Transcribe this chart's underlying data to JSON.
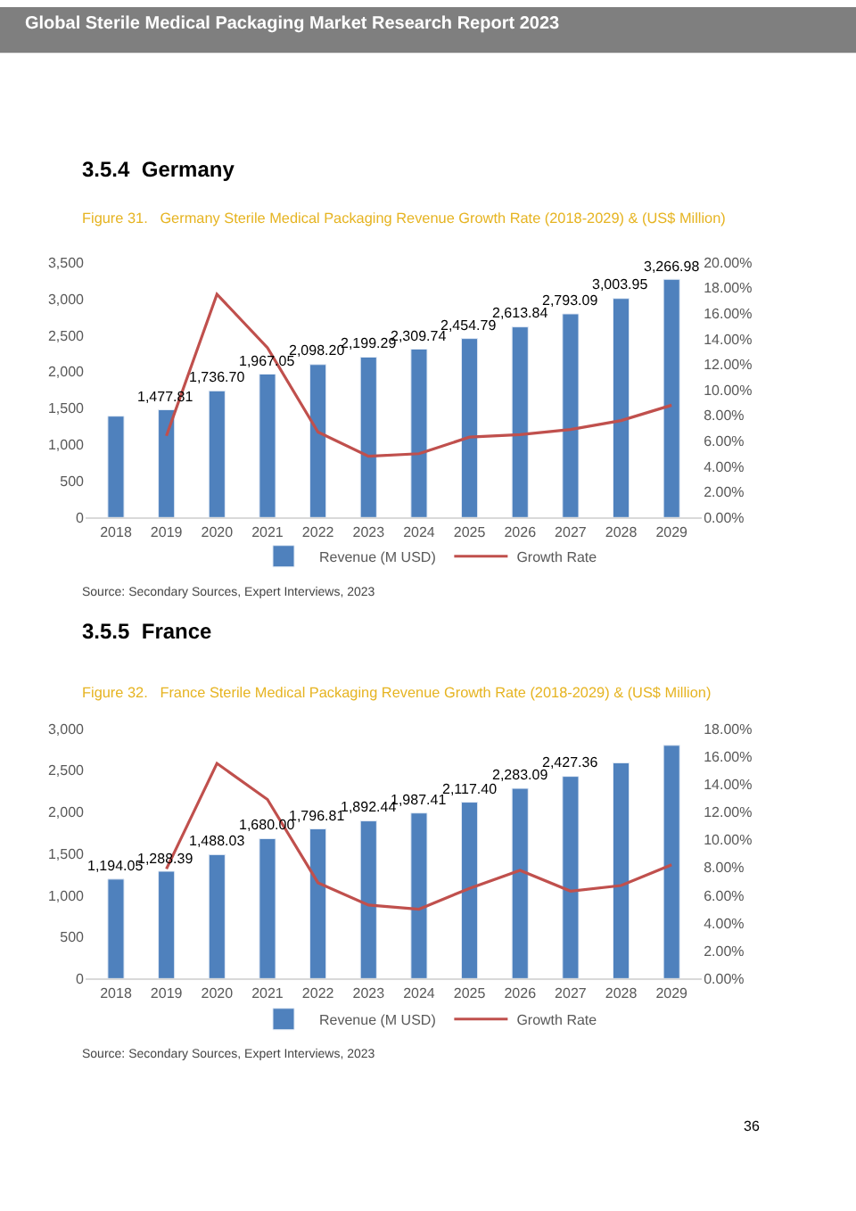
{
  "chart_data": [
    {
      "type": "bar",
      "title": "Figure 31.   Germany Sterile Medical Packaging Revenue Growth Rate (2018-2029) & (US$ Million)",
      "annotations": [
        "Global Sterile Medical Packaging Market Research Report 2023",
        "3.5.4  Germany",
        "Source: Secondary Sources, Expert Interviews, 2023"
      ],
      "categories": [
        "2018",
        "2019",
        "2020",
        "2021",
        "2022",
        "2023",
        "2024",
        "2025",
        "2026",
        "2027",
        "2028",
        "2029"
      ],
      "series": [
        {
          "name": "Revenue (M USD)",
          "color": "#4f81bd",
          "values": [
            1390,
            1477.81,
            1736.7,
            1967.05,
            2098.2,
            2199.29,
            2309.74,
            2454.79,
            2613.84,
            2793.09,
            3003.95,
            3266.98
          ],
          "value_labels": [
            null,
            "1,477.81",
            "1,736.70",
            "1,967.05",
            "2,098.20",
            "2,199.29",
            "2,309.74",
            "2,454.79",
            "2,613.84",
            "2,793.09",
            "3,003.95",
            "3,266.98"
          ]
        },
        {
          "name": "Growth Rate",
          "type": "line",
          "axis": "y2",
          "color": "#c0504d",
          "values": [
            null,
            6.4,
            17.5,
            13.3,
            6.7,
            4.8,
            5.0,
            6.3,
            6.5,
            6.9,
            7.6,
            8.8
          ]
        }
      ],
      "ylim": [
        0,
        3500
      ],
      "yticks": [
        0,
        {
          "value": 500,
          "label": "500"
        },
        {
          "value": 1000,
          "label": "1,000"
        },
        {
          "value": 1500,
          "label": "1,500"
        },
        {
          "value": 2000,
          "label": "2,000"
        },
        {
          "value": 2500,
          "label": "2,500"
        },
        {
          "value": 3000,
          "label": "3,000"
        },
        {
          "value": 3500,
          "label": "3,500"
        }
      ],
      "y2lim": [
        0,
        20
      ],
      "y2ticks": [
        {
          "value": 0,
          "label": "0.00%"
        },
        {
          "value": 2,
          "label": "2.00%"
        },
        {
          "value": 4,
          "label": "4.00%"
        },
        {
          "value": 6,
          "label": "6.00%"
        },
        {
          "value": 8,
          "label": "8.00%"
        },
        {
          "value": 10,
          "label": "10.00%"
        },
        {
          "value": 12,
          "label": "12.00%"
        },
        {
          "value": 14,
          "label": "14.00%"
        },
        {
          "value": 16,
          "label": "16.00%"
        },
        {
          "value": 18,
          "label": "18.00%"
        },
        {
          "value": 20,
          "label": "20.00%"
        }
      ],
      "grid": false,
      "legend": "bottom",
      "marker": "none",
      "line_style": "solid"
    },
    {
      "type": "bar",
      "title": "Figure 32.   France Sterile Medical Packaging Revenue Growth Rate (2018-2029) & (US$ Million)",
      "annotations": [
        "3.5.5  France",
        "Source: Secondary Sources, Expert Interviews, 2023",
        "36"
      ],
      "categories": [
        "2018",
        "2019",
        "2020",
        "2021",
        "2022",
        "2023",
        "2024",
        "2025",
        "2026",
        "2027",
        "2028",
        "2029"
      ],
      "series": [
        {
          "name": "Revenue (M USD)",
          "color": "#4f81bd",
          "values": [
            1194.05,
            1288.39,
            1488.03,
            1680.0,
            1796.81,
            1892.44,
            1987.41,
            2117.4,
            2283.09,
            2427.36,
            2590,
            2800
          ],
          "value_labels": [
            "1,194.05",
            "1,288.39",
            "1,488.03",
            "1,680.00",
            "1,796.81",
            "1,892.44",
            "1,987.41",
            "2,117.40",
            "2,283.09",
            "2,427.36",
            null,
            null
          ]
        },
        {
          "name": "Growth Rate",
          "type": "line",
          "axis": "y2",
          "color": "#c0504d",
          "values": [
            null,
            7.9,
            15.5,
            12.9,
            6.9,
            5.3,
            5.0,
            6.5,
            7.8,
            6.3,
            6.7,
            8.2
          ]
        }
      ],
      "ylim": [
        0,
        3000
      ],
      "yticks": [
        0,
        {
          "value": 500,
          "label": "500"
        },
        {
          "value": 1000,
          "label": "1,000"
        },
        {
          "value": 1500,
          "label": "1,500"
        },
        {
          "value": 2000,
          "label": "2,000"
        },
        {
          "value": 2500,
          "label": "2,500"
        },
        {
          "value": 3000,
          "label": "3,000"
        }
      ],
      "y2lim": [
        0,
        18
      ],
      "y2ticks": [
        {
          "value": 0,
          "label": "0.00%"
        },
        {
          "value": 2,
          "label": "2.00%"
        },
        {
          "value": 4,
          "label": "4.00%"
        },
        {
          "value": 6,
          "label": "6.00%"
        },
        {
          "value": 8,
          "label": "8.00%"
        },
        {
          "value": 10,
          "label": "10.00%"
        },
        {
          "value": 12,
          "label": "12.00%"
        },
        {
          "value": 14,
          "label": "14.00%"
        },
        {
          "value": 16,
          "label": "16.00%"
        },
        {
          "value": 18,
          "label": "18.00%"
        }
      ],
      "grid": false,
      "legend": "bottom",
      "marker": "none",
      "line_style": "solid"
    }
  ]
}
